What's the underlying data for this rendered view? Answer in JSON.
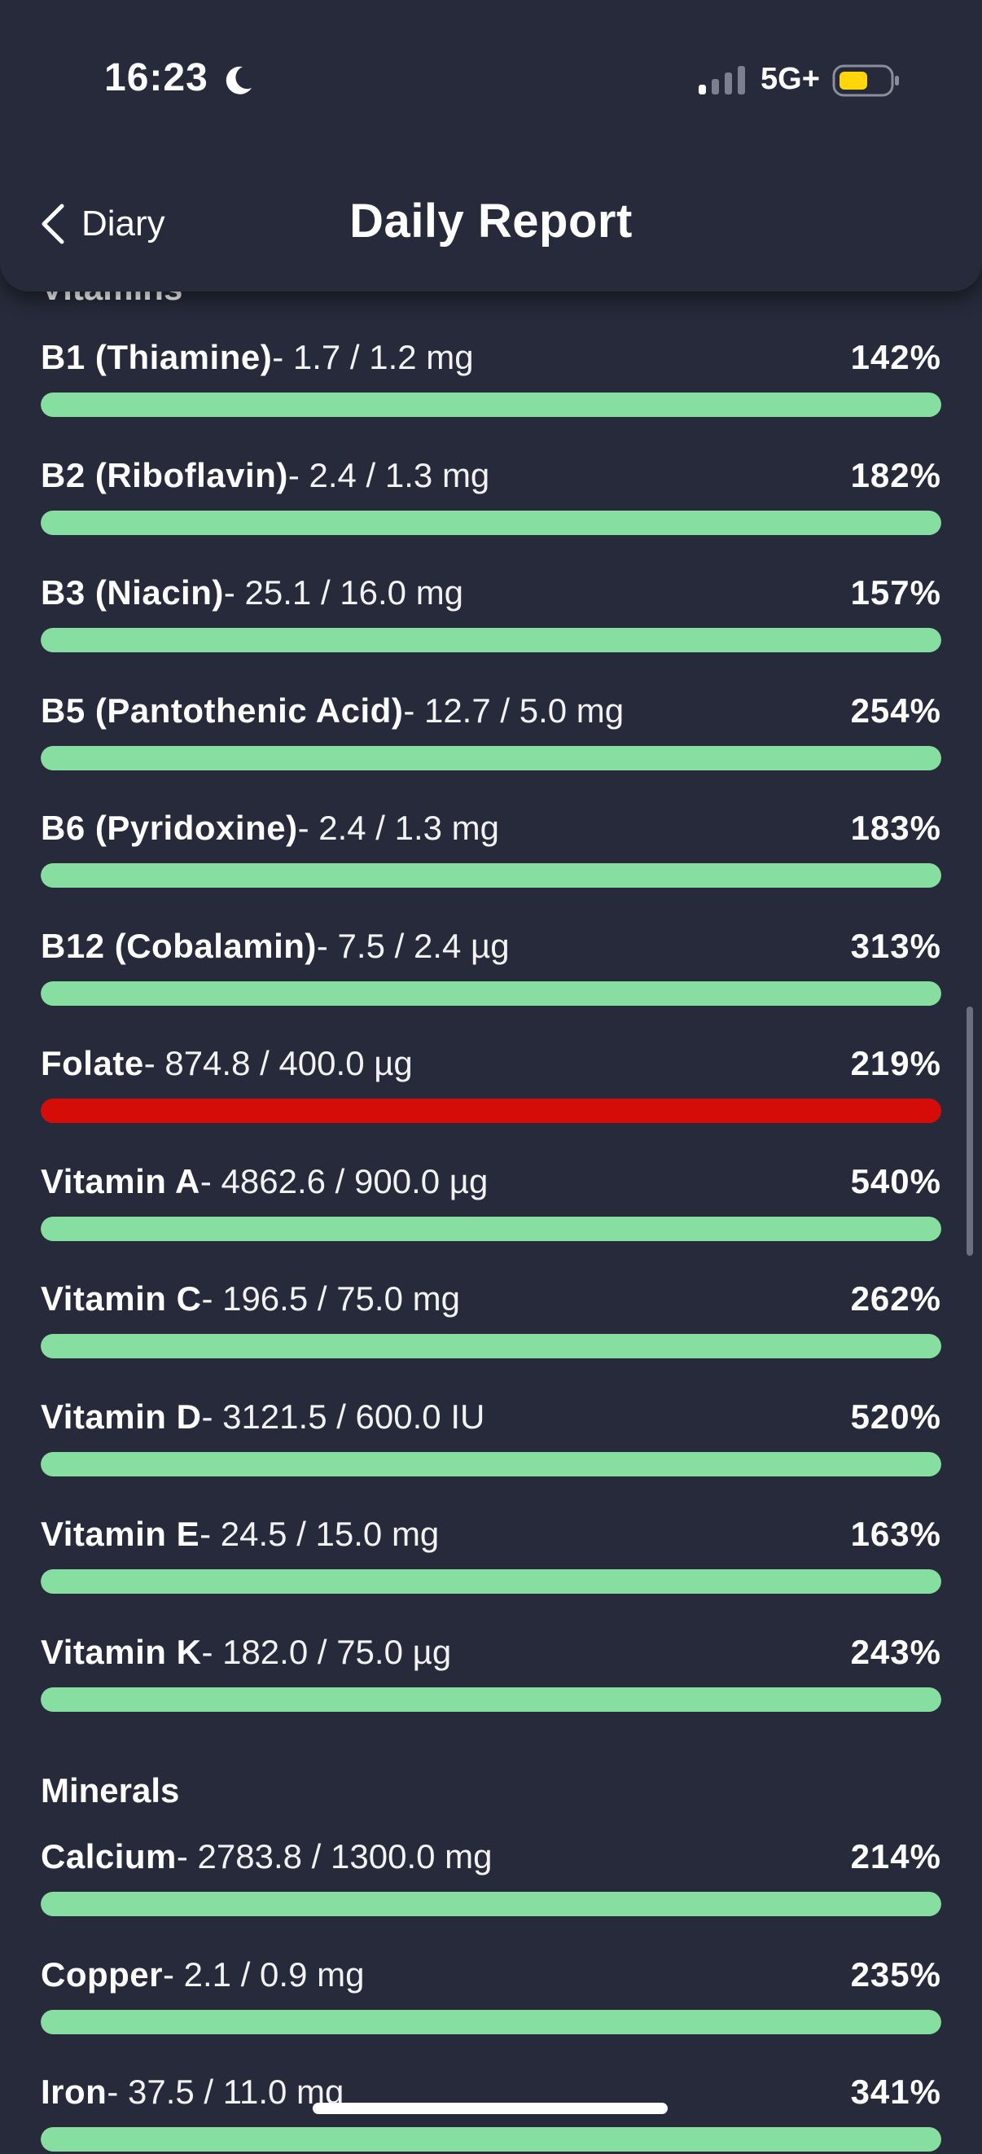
{
  "status_bar": {
    "time": "16:23",
    "network": "5G+",
    "icons": [
      "moon-icon",
      "signal-icon",
      "battery-icon"
    ]
  },
  "header": {
    "back_label": "Diary",
    "title": "Daily Report"
  },
  "colors": {
    "background": "#272a3a",
    "bar_ok": "#86dea0",
    "bar_warning": "#d50c07",
    "battery": "#ffd60a"
  },
  "vitamins": {
    "heading": "Vitamins",
    "items": [
      {
        "name": "B1 (Thiamine)",
        "amount": "- 1.7 / 1.2 mg",
        "percent": "142%",
        "fill": 1.0,
        "status": "ok"
      },
      {
        "name": "B2 (Riboflavin)",
        "amount": "- 2.4 / 1.3 mg",
        "percent": "182%",
        "fill": 1.0,
        "status": "ok"
      },
      {
        "name": "B3 (Niacin)",
        "amount": "- 25.1 / 16.0 mg",
        "percent": "157%",
        "fill": 1.0,
        "status": "ok"
      },
      {
        "name": "B5 (Pantothenic Acid)",
        "amount": "- 12.7 / 5.0 mg",
        "percent": "254%",
        "fill": 1.0,
        "status": "ok"
      },
      {
        "name": "B6 (Pyridoxine)",
        "amount": "- 2.4 / 1.3 mg",
        "percent": "183%",
        "fill": 1.0,
        "status": "ok"
      },
      {
        "name": "B12 (Cobalamin)",
        "amount": "- 7.5 / 2.4 µg",
        "percent": "313%",
        "fill": 1.0,
        "status": "ok"
      },
      {
        "name": "Folate",
        "amount": "- 874.8 / 400.0 µg",
        "percent": "219%",
        "fill": 1.0,
        "status": "warning"
      },
      {
        "name": "Vitamin A",
        "amount": "- 4862.6 / 900.0 µg",
        "percent": "540%",
        "fill": 1.0,
        "status": "ok"
      },
      {
        "name": "Vitamin C",
        "amount": "- 196.5 / 75.0 mg",
        "percent": "262%",
        "fill": 1.0,
        "status": "ok"
      },
      {
        "name": "Vitamin D",
        "amount": "- 3121.5 / 600.0 IU",
        "percent": "520%",
        "fill": 1.0,
        "status": "ok"
      },
      {
        "name": "Vitamin E",
        "amount": "- 24.5 / 15.0 mg",
        "percent": "163%",
        "fill": 1.0,
        "status": "ok"
      },
      {
        "name": "Vitamin K",
        "amount": "- 182.0 / 75.0 µg",
        "percent": "243%",
        "fill": 1.0,
        "status": "ok"
      }
    ]
  },
  "minerals": {
    "heading": "Minerals",
    "items": [
      {
        "name": "Calcium",
        "amount": "- 2783.8 / 1300.0 mg",
        "percent": "214%",
        "fill": 1.0,
        "status": "ok"
      },
      {
        "name": "Copper",
        "amount": "- 2.1 / 0.9 mg",
        "percent": "235%",
        "fill": 1.0,
        "status": "ok"
      },
      {
        "name": "Iron",
        "amount": "- 37.5 / 11.0 mg",
        "percent": "341%",
        "fill": 1.0,
        "status": "ok"
      }
    ]
  }
}
